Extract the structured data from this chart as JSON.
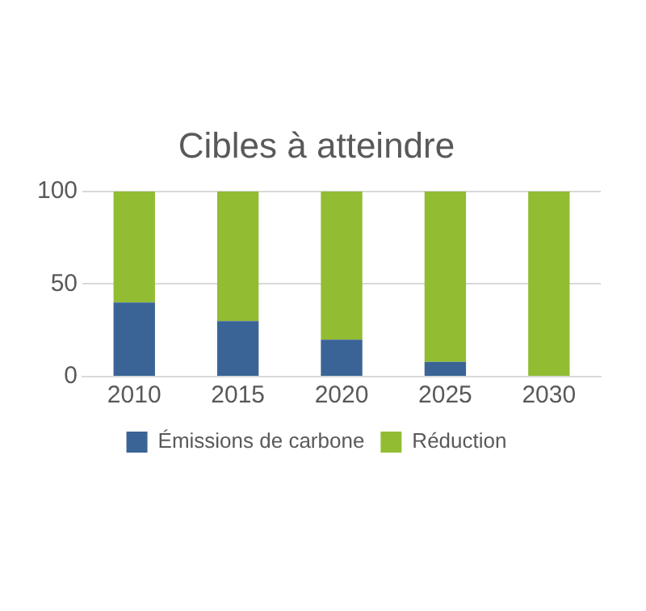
{
  "chart_data": {
    "type": "bar",
    "title": "Cibles à atteindre",
    "categories": [
      "2010",
      "2015",
      "2020",
      "2025",
      "2030"
    ],
    "stacked": true,
    "series": [
      {
        "name": "Émissions de carbone",
        "color": "#3a6496",
        "values": [
          40,
          30,
          20,
          8,
          0
        ]
      },
      {
        "name": "Réduction",
        "color": "#92bd33",
        "values": [
          60,
          70,
          80,
          92,
          100
        ]
      }
    ],
    "ylim": [
      0,
      100
    ],
    "yticks": [
      0,
      50,
      100
    ],
    "grid": "y",
    "legend": "bottom"
  }
}
